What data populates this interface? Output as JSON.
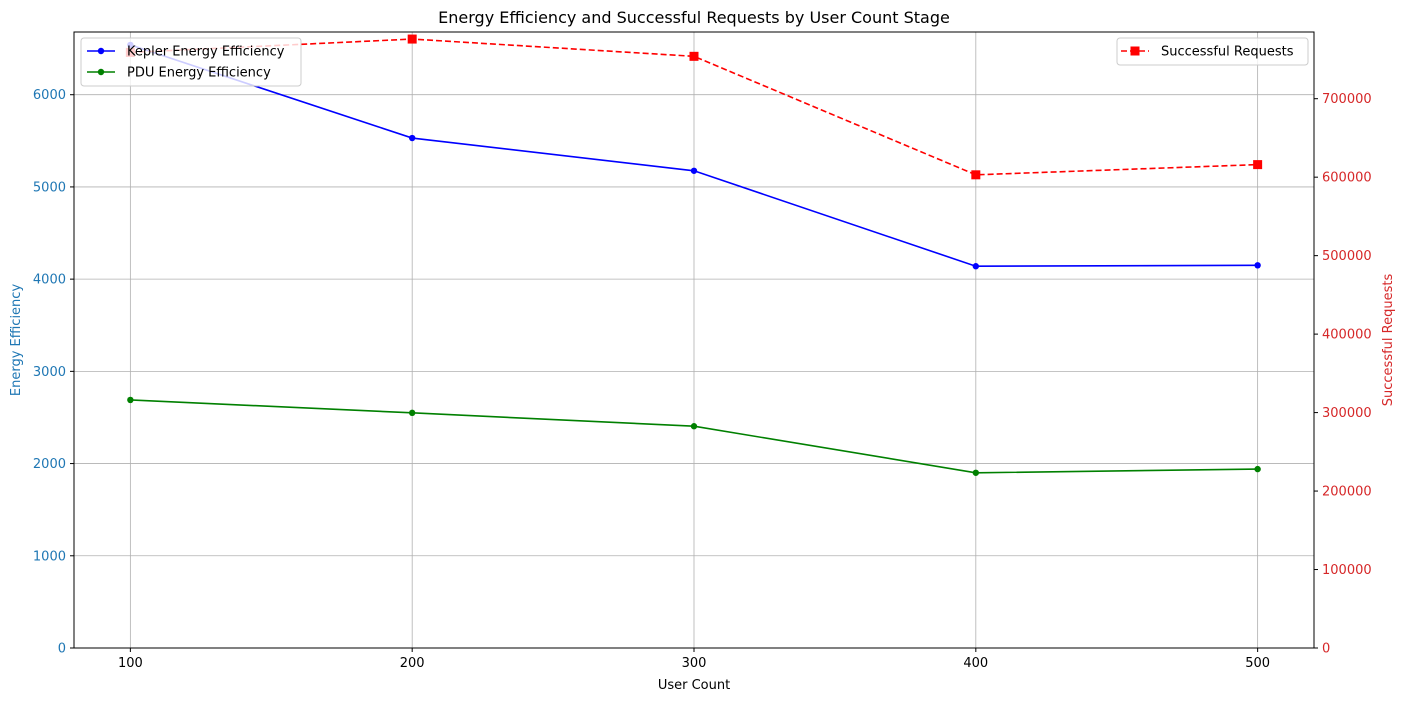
{
  "chart_data": {
    "type": "line",
    "title": "Energy Efficiency and Successful Requests by User Count Stage",
    "xlabel": "User Count",
    "ylabel_left": "Energy Efficiency",
    "ylabel_right": "Successful Requests",
    "x": [
      100,
      200,
      300,
      400,
      500
    ],
    "xlim": [
      80,
      520
    ],
    "ylim_left": [
      0,
      6680
    ],
    "ylim_right": [
      0,
      785000
    ],
    "yticks_left": [
      0,
      1000,
      2000,
      3000,
      4000,
      5000,
      6000
    ],
    "yticks_right": [
      0,
      100000,
      200000,
      300000,
      400000,
      500000,
      600000,
      700000
    ],
    "grid": true,
    "left_axis_color": "#1f77b4",
    "right_axis_color": "#d62728",
    "series_left": [
      {
        "name": "Kepler Energy Efficiency",
        "color": "#0000ff",
        "marker": "circle",
        "linestyle": "solid",
        "values": [
          6540,
          5530,
          5175,
          4140,
          4150
        ]
      },
      {
        "name": "PDU Energy Efficiency",
        "color": "#008000",
        "marker": "circle",
        "linestyle": "solid",
        "values": [
          2690,
          2550,
          2405,
          1900,
          1940
        ]
      }
    ],
    "series_right": [
      {
        "name": "Successful Requests",
        "color": "#ff0000",
        "marker": "square",
        "linestyle": "dashed",
        "values": [
          759000,
          776000,
          754000,
          603000,
          616000
        ]
      }
    ],
    "legend_left_position": "upper-left",
    "legend_right_position": "upper-right"
  }
}
